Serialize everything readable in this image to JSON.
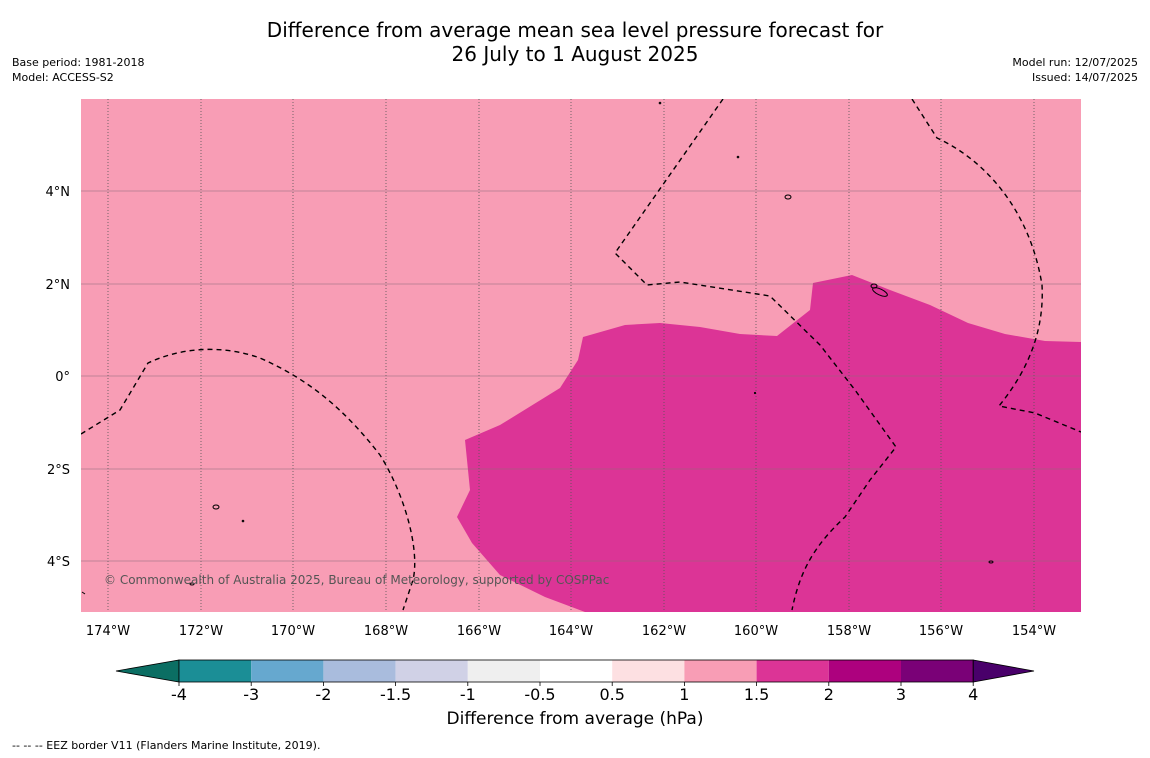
{
  "header": {
    "title_line1": "Difference from average mean sea level pressure forecast for",
    "title_line2": "26 July to 1 August 2025",
    "base_period": "Base period: 1981-2018",
    "model": "Model: ACCESS-S2",
    "model_run": "Model run: 12/07/2025",
    "issued": "Issued: 14/07/2025"
  },
  "map": {
    "copyright": "© Commonwealth of Australia 2025, Bureau of Meteorology, supported by COSPPac",
    "x_ticks": [
      "174°W",
      "172°W",
      "170°W",
      "168°W",
      "166°W",
      "164°W",
      "162°W",
      "160°W",
      "158°W",
      "156°W",
      "154°W"
    ],
    "y_ticks": [
      "4°N",
      "2°N",
      "0°",
      "2°S",
      "4°S"
    ],
    "background_class": "1 to 1.5",
    "fill_colors": {
      "class_1_1p5": "#f89db5",
      "class_1p5_2": "#dc3496"
    }
  },
  "colorbar": {
    "label": "Difference from average (hPa)",
    "ticks": [
      "-4",
      "-3",
      "-2",
      "-1.5",
      "-1",
      "-0.5",
      "0.5",
      "1",
      "1.5",
      "2",
      "3",
      "4"
    ],
    "colors": [
      "#0b6e63",
      "#1b8e96",
      "#66a8cf",
      "#a9bcdd",
      "#d0d1e6",
      "#efefef",
      "#ffffff",
      "#fde0e2",
      "#f89db5",
      "#dc3496",
      "#ad017e",
      "#7a0177",
      "#49006a"
    ]
  },
  "footnote": "--  --  -- EEZ border V11 (Flanders Marine Institute, 2019)."
}
